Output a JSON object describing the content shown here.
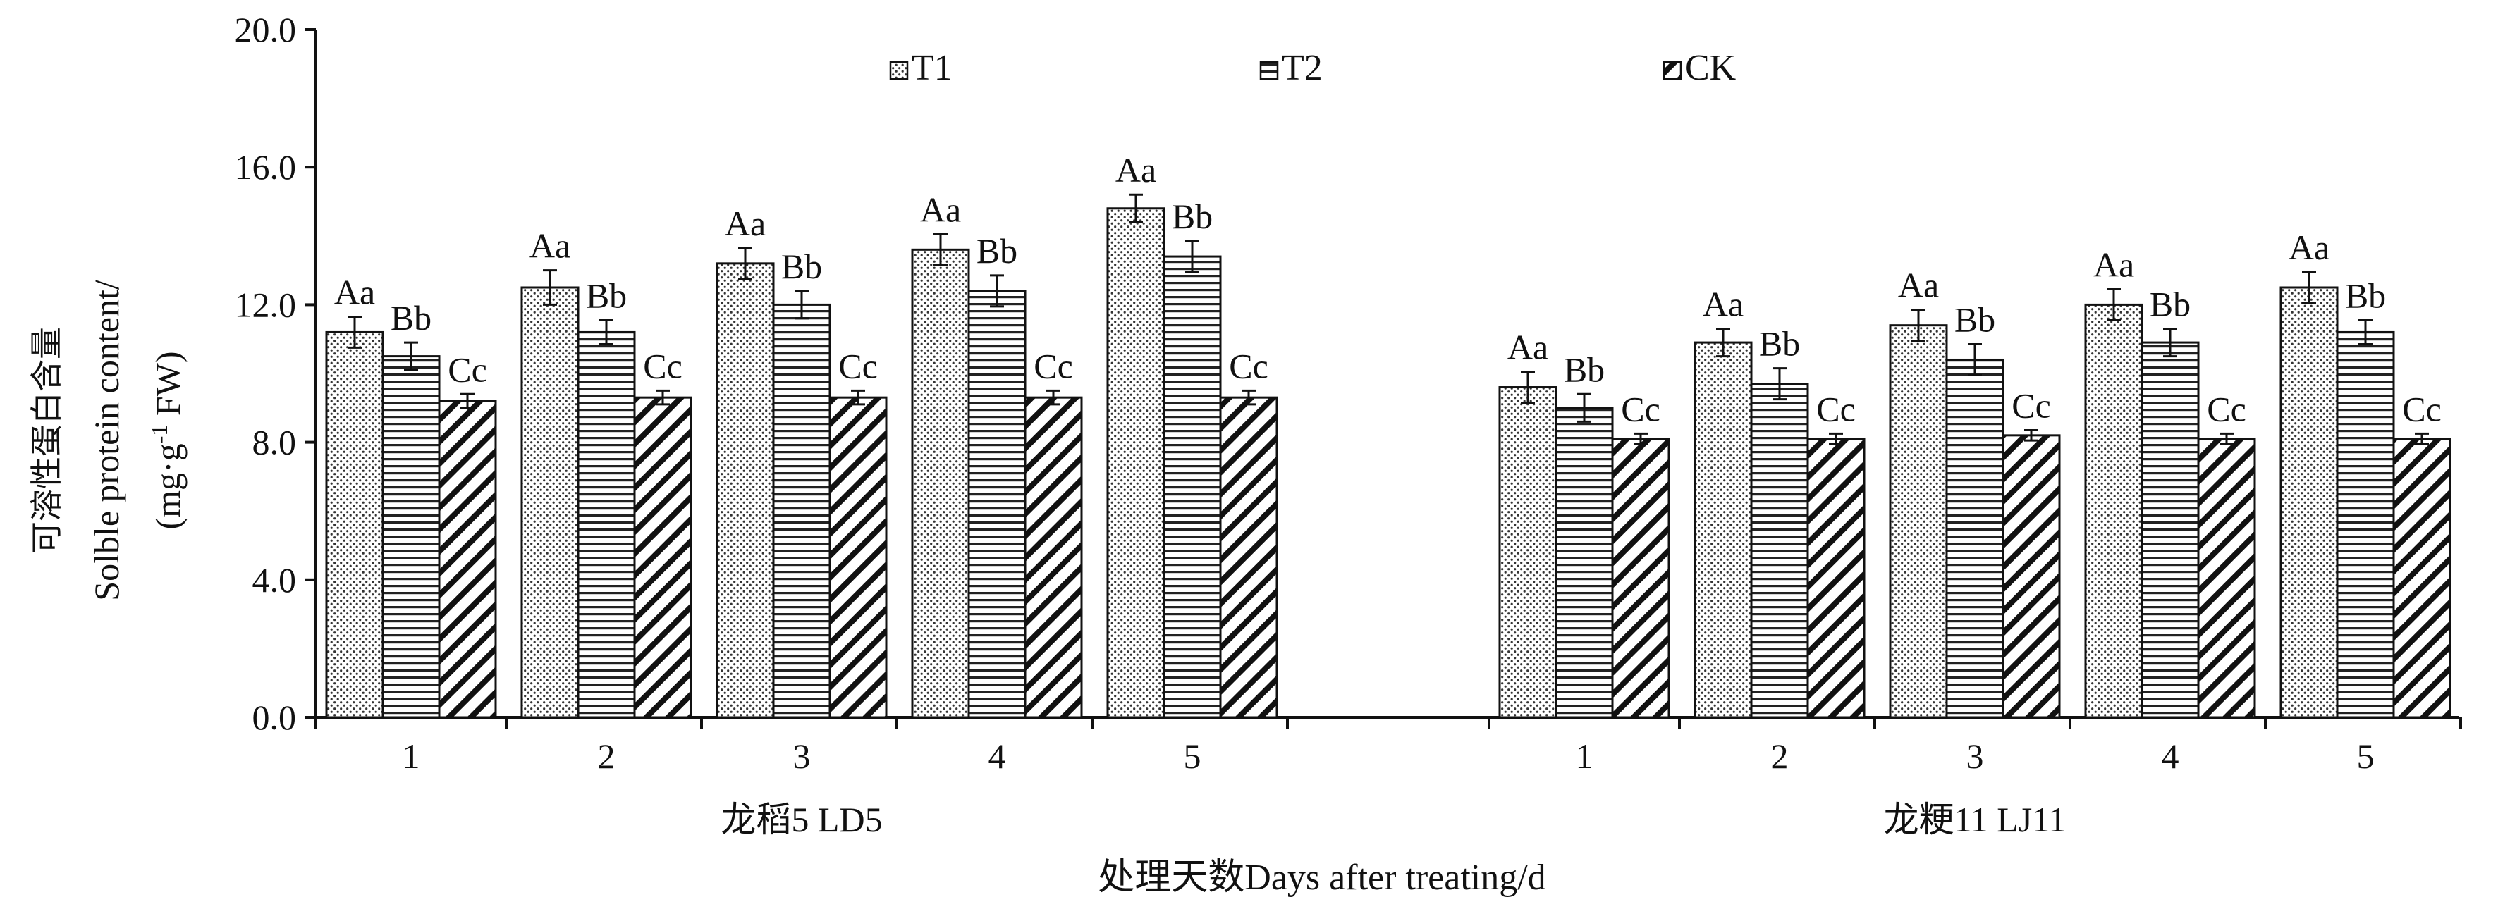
{
  "chart_data": {
    "type": "bar",
    "ylabel_lines": [
      "可溶性蛋白含量",
      "Solble protein content/",
      "(mg·g",
      "-1",
      " FW)"
    ],
    "xlabel": "处理天数Days after treating/d",
    "ylim": [
      0,
      20
    ],
    "yticks": [
      "0.0",
      "4.0",
      "8.0",
      "12.0",
      "16.0",
      "20.0"
    ],
    "grid": false,
    "legend_position": "top",
    "groups": [
      {
        "label": "龙稻5 LD5",
        "days": [
          "1",
          "2",
          "3",
          "4",
          "5"
        ],
        "series": [
          {
            "name": "T1",
            "pattern": "dots",
            "values": [
              11.2,
              12.5,
              13.2,
              13.6,
              14.8
            ],
            "errors": [
              0.45,
              0.5,
              0.45,
              0.45,
              0.4
            ],
            "letters": [
              "Aa",
              "Aa",
              "Aa",
              "Aa",
              "Aa"
            ]
          },
          {
            "name": "T2",
            "pattern": "hlines",
            "values": [
              10.5,
              11.2,
              12.0,
              12.4,
              13.4
            ],
            "errors": [
              0.4,
              0.35,
              0.4,
              0.45,
              0.45
            ],
            "letters": [
              "Bb",
              "Bb",
              "Bb",
              "Bb",
              "Bb"
            ]
          },
          {
            "name": "CK",
            "pattern": "diag",
            "values": [
              9.2,
              9.3,
              9.3,
              9.3,
              9.3
            ],
            "errors": [
              0.2,
              0.2,
              0.2,
              0.2,
              0.2
            ],
            "letters": [
              "Cc",
              "Cc",
              "Cc",
              "Cc",
              "Cc"
            ]
          }
        ]
      },
      {
        "label": "龙粳11 LJ11",
        "days": [
          "1",
          "2",
          "3",
          "4",
          "5"
        ],
        "series": [
          {
            "name": "T1",
            "pattern": "dots",
            "values": [
              9.6,
              10.9,
              11.4,
              12.0,
              12.5
            ],
            "errors": [
              0.45,
              0.4,
              0.45,
              0.45,
              0.45
            ],
            "letters": [
              "Aa",
              "Aa",
              "Aa",
              "Aa",
              "Aa"
            ]
          },
          {
            "name": "T2",
            "pattern": "hlines",
            "values": [
              9.0,
              9.7,
              10.4,
              10.9,
              11.2
            ],
            "errors": [
              0.4,
              0.45,
              0.45,
              0.4,
              0.35
            ],
            "letters": [
              "Bb",
              "Bb",
              "Bb",
              "Bb",
              "Bb"
            ]
          },
          {
            "name": "CK",
            "pattern": "diag",
            "values": [
              8.1,
              8.1,
              8.2,
              8.1,
              8.1
            ],
            "errors": [
              0.15,
              0.15,
              0.15,
              0.15,
              0.15
            ],
            "letters": [
              "Cc",
              "Cc",
              "Cc",
              "Cc",
              "Cc"
            ]
          }
        ]
      }
    ],
    "legend": [
      "T1",
      "T2",
      "CK"
    ]
  }
}
